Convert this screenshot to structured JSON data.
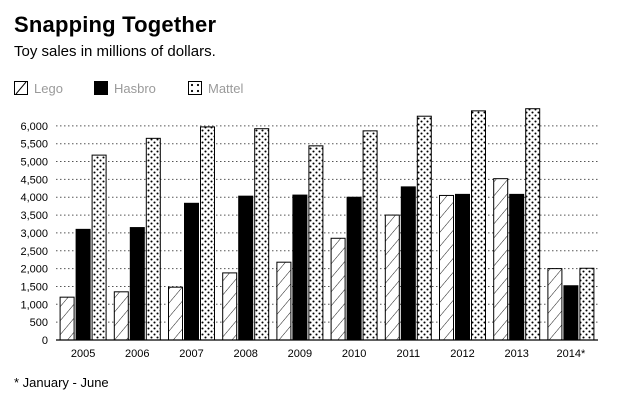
{
  "chart_data": {
    "type": "bar",
    "title": "Snapping Together",
    "subtitle": "Toy sales in millions of dollars.",
    "categories": [
      "2005",
      "2006",
      "2007",
      "2008",
      "2009",
      "2010",
      "2011",
      "2012",
      "2013",
      "2014*"
    ],
    "series": [
      {
        "name": "Lego",
        "pattern": "hatch",
        "values": [
          1200,
          1350,
          1480,
          1880,
          2180,
          2850,
          3500,
          4050,
          4520,
          2000
        ]
      },
      {
        "name": "Hasbro",
        "pattern": "solid",
        "values": [
          3100,
          3150,
          3830,
          4030,
          4060,
          4000,
          4290,
          4080,
          4080,
          1520
        ]
      },
      {
        "name": "Mattel",
        "pattern": "dots",
        "values": [
          5180,
          5650,
          5970,
          5920,
          5440,
          5860,
          6270,
          6420,
          6480,
          2010
        ]
      }
    ],
    "ylim": [
      0,
      6500
    ],
    "yticks": [
      0,
      500,
      1000,
      1500,
      2000,
      2500,
      3000,
      3500,
      4000,
      4500,
      5000,
      5500,
      6000
    ],
    "ytick_labels": [
      "0",
      "500",
      "1,000",
      "1,500",
      "2,000",
      "2,500",
      "3,000",
      "3,500",
      "4,000",
      "4,500",
      "5,000",
      "5,500",
      "6,000"
    ],
    "grid": true,
    "legend_position": "top-left",
    "colors": {
      "bar_stroke": "#000000",
      "grid": "#555555",
      "legend_text": "#9a9a9a"
    }
  },
  "footnote": "* January - June"
}
